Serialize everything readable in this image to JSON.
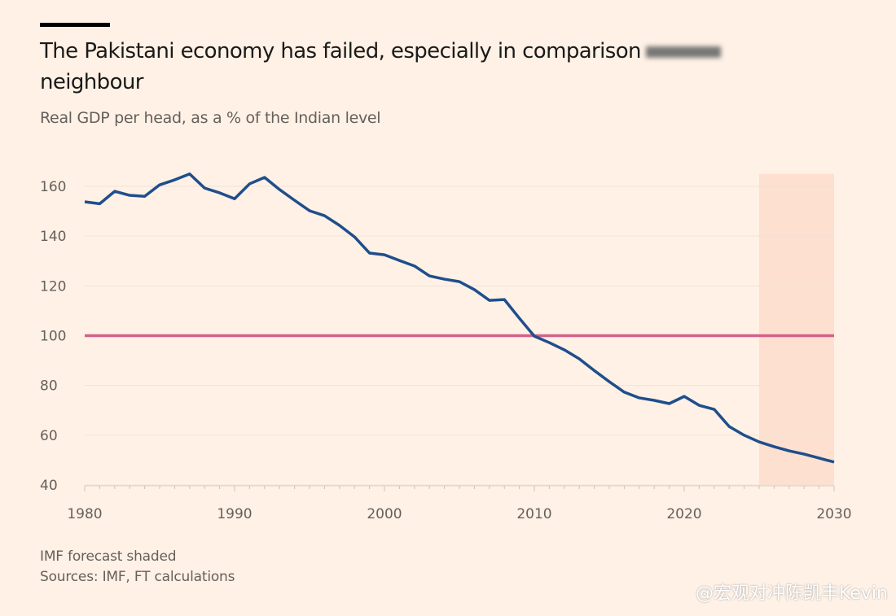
{
  "title_line1": "The Pakistani economy has failed, especially in comparison",
  "title_line2": "neighbour",
  "subtitle": "Real GDP per head, as a % of the Indian level",
  "notes": [
    "IMF forecast shaded",
    "Sources: IMF, FT calculations"
  ],
  "watermark": "@宏观对冲陈凯丰Kevin",
  "colors": {
    "background": "#fff1e5",
    "line": "#1f4e8c",
    "reference": "#d3628c",
    "forecast_shade": "#fde0cf"
  },
  "chart_data": {
    "type": "line",
    "title": "The Pakistani economy has failed, especially in comparison neighbour",
    "ylabel": "Real GDP per head, as a % of the Indian level",
    "xlim": [
      1980,
      2030
    ],
    "ylim": [
      40,
      165
    ],
    "xticks": [
      "1980",
      "1990",
      "2000",
      "2010",
      "2020",
      "2030"
    ],
    "yticks": [
      "40",
      "60",
      "80",
      "100",
      "120",
      "140",
      "160"
    ],
    "grid": "horizontal",
    "reference_line": 100,
    "forecast_shaded": [
      2025,
      2030
    ],
    "x": [
      1980,
      1981,
      1982,
      1983,
      1984,
      1985,
      1986,
      1987,
      1988,
      1989,
      1990,
      1991,
      1992,
      1993,
      1994,
      1995,
      1996,
      1997,
      1998,
      1999,
      2000,
      2001,
      2002,
      2003,
      2004,
      2005,
      2006,
      2007,
      2008,
      2009,
      2010,
      2011,
      2012,
      2013,
      2014,
      2015,
      2016,
      2017,
      2018,
      2019,
      2020,
      2021,
      2022,
      2023,
      2024,
      2025,
      2026,
      2027,
      2028,
      2029,
      2030
    ],
    "values": [
      153.8,
      153,
      158,
      156.4,
      156,
      160.6,
      162.6,
      165,
      159.3,
      157.4,
      155,
      161,
      163.6,
      158.7,
      154.4,
      150.2,
      148.2,
      144.3,
      139.7,
      133.2,
      132.5,
      130.2,
      128,
      124,
      122.7,
      121.7,
      118.5,
      114.2,
      114.5,
      107,
      99.8,
      97.2,
      94.3,
      90.7,
      86,
      81.5,
      77.3,
      75,
      74,
      72.7,
      75.6,
      72,
      70.4,
      63.5,
      60,
      57.3,
      55.4,
      53.7,
      52.4,
      50.8,
      49.2
    ]
  }
}
